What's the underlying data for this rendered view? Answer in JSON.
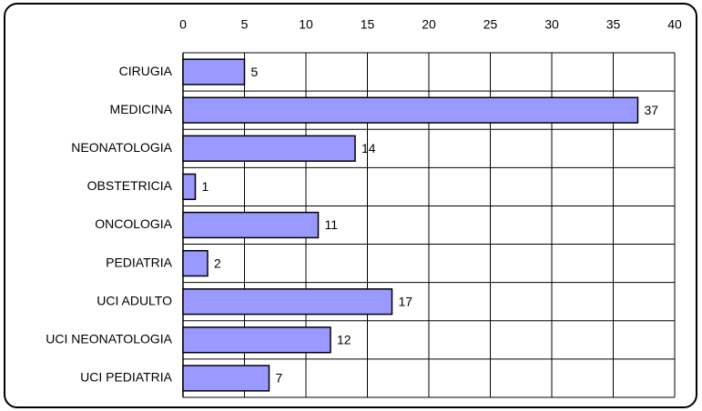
{
  "chart_data": {
    "type": "bar",
    "orientation": "horizontal",
    "categories": [
      "CIRUGIA",
      "MEDICINA",
      "NEONATOLOGIA",
      "OBSTETRICIA",
      "ONCOLOGIA",
      "PEDIATRIA",
      "UCI ADULTO",
      "UCI NEONATOLOGIA",
      "UCI PEDIATRIA"
    ],
    "values": [
      5,
      37,
      14,
      1,
      11,
      2,
      17,
      12,
      7
    ],
    "color": "#9999ff",
    "xlim": [
      0,
      40
    ],
    "xticks": [
      0,
      5,
      10,
      15,
      20,
      25,
      30,
      35,
      40
    ],
    "grid": true
  }
}
